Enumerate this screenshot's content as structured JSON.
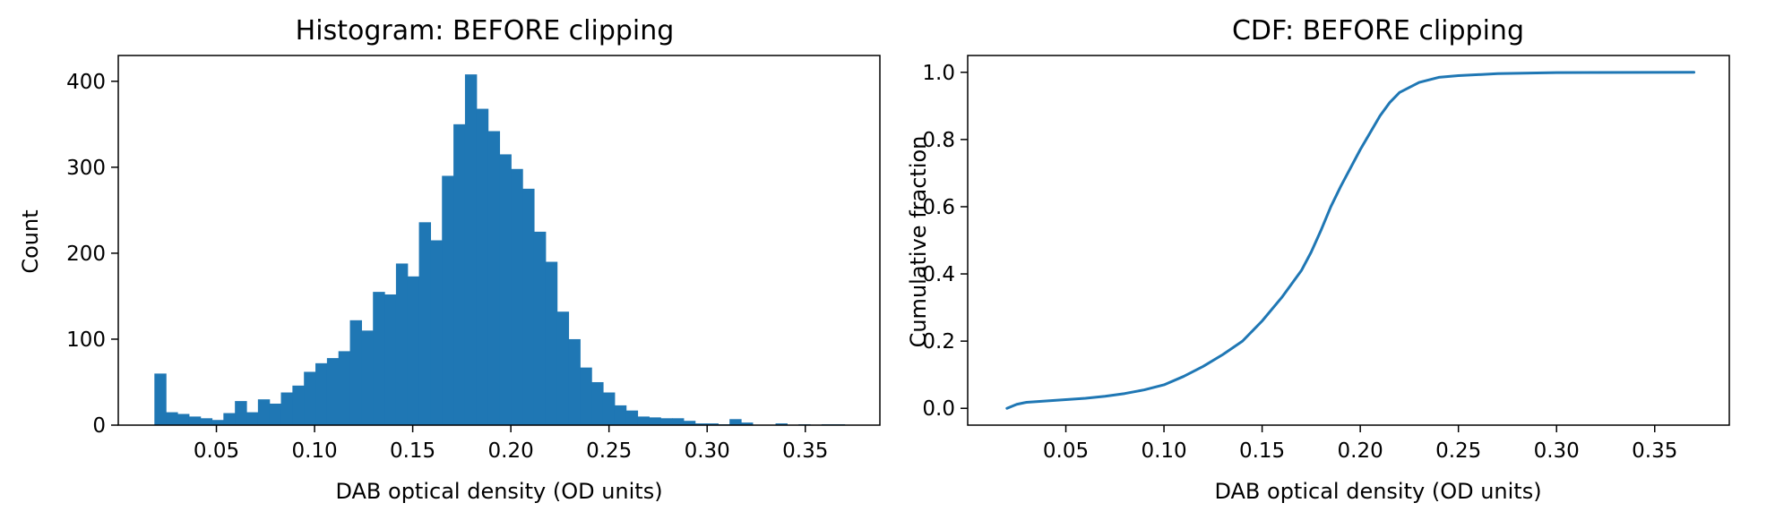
{
  "chart_data": [
    {
      "type": "bar",
      "title": "Histogram: BEFORE clipping",
      "xlabel": "DAB optical density (OD units)",
      "ylabel": "Count",
      "xlim": [
        0.0,
        0.388
      ],
      "ylim": [
        0,
        430
      ],
      "xticks": [
        0.05,
        0.1,
        0.15,
        0.2,
        0.25,
        0.3,
        0.35
      ],
      "xtick_labels": [
        "0.05",
        "0.10",
        "0.15",
        "0.20",
        "0.25",
        "0.30",
        "0.35"
      ],
      "yticks": [
        0,
        100,
        200,
        300,
        400
      ],
      "ytick_labels": [
        "0",
        "100",
        "200",
        "300",
        "400"
      ],
      "bin_start": 0.0184,
      "bin_width": 0.00586,
      "values": [
        60,
        15,
        13,
        10,
        8,
        6,
        14,
        28,
        15,
        30,
        25,
        38,
        46,
        62,
        72,
        78,
        86,
        122,
        110,
        155,
        152,
        188,
        173,
        236,
        215,
        290,
        350,
        408,
        368,
        342,
        315,
        298,
        275,
        225,
        190,
        132,
        100,
        67,
        50,
        38,
        23,
        17,
        10,
        9,
        8,
        8,
        5,
        2,
        2,
        1,
        7,
        3,
        0,
        0,
        2,
        0,
        1,
        0,
        1,
        1
      ],
      "color": "#1f77b4",
      "grid": false
    },
    {
      "type": "line",
      "title": "CDF: BEFORE clipping",
      "xlabel": "DAB optical density (OD units)",
      "ylabel": "Cumulative fraction",
      "xlim": [
        0.0,
        0.388
      ],
      "ylim": [
        -0.05,
        1.05
      ],
      "xticks": [
        0.05,
        0.1,
        0.15,
        0.2,
        0.25,
        0.3,
        0.35
      ],
      "xtick_labels": [
        "0.05",
        "0.10",
        "0.15",
        "0.20",
        "0.25",
        "0.30",
        "0.35"
      ],
      "yticks": [
        0.0,
        0.2,
        0.4,
        0.6,
        0.8,
        1.0
      ],
      "ytick_labels": [
        "0.0",
        "0.2",
        "0.4",
        "0.6",
        "0.8",
        "1.0"
      ],
      "x": [
        0.02,
        0.025,
        0.03,
        0.04,
        0.05,
        0.06,
        0.07,
        0.08,
        0.09,
        0.1,
        0.11,
        0.12,
        0.13,
        0.14,
        0.15,
        0.16,
        0.17,
        0.175,
        0.18,
        0.185,
        0.19,
        0.2,
        0.21,
        0.215,
        0.22,
        0.23,
        0.24,
        0.25,
        0.27,
        0.3,
        0.37
      ],
      "y": [
        0.0,
        0.012,
        0.018,
        0.022,
        0.026,
        0.03,
        0.036,
        0.044,
        0.055,
        0.07,
        0.095,
        0.125,
        0.16,
        0.2,
        0.26,
        0.33,
        0.41,
        0.465,
        0.53,
        0.6,
        0.66,
        0.77,
        0.87,
        0.91,
        0.94,
        0.97,
        0.985,
        0.99,
        0.996,
        0.999,
        1.0
      ],
      "color": "#1f77b4",
      "grid": false
    }
  ]
}
